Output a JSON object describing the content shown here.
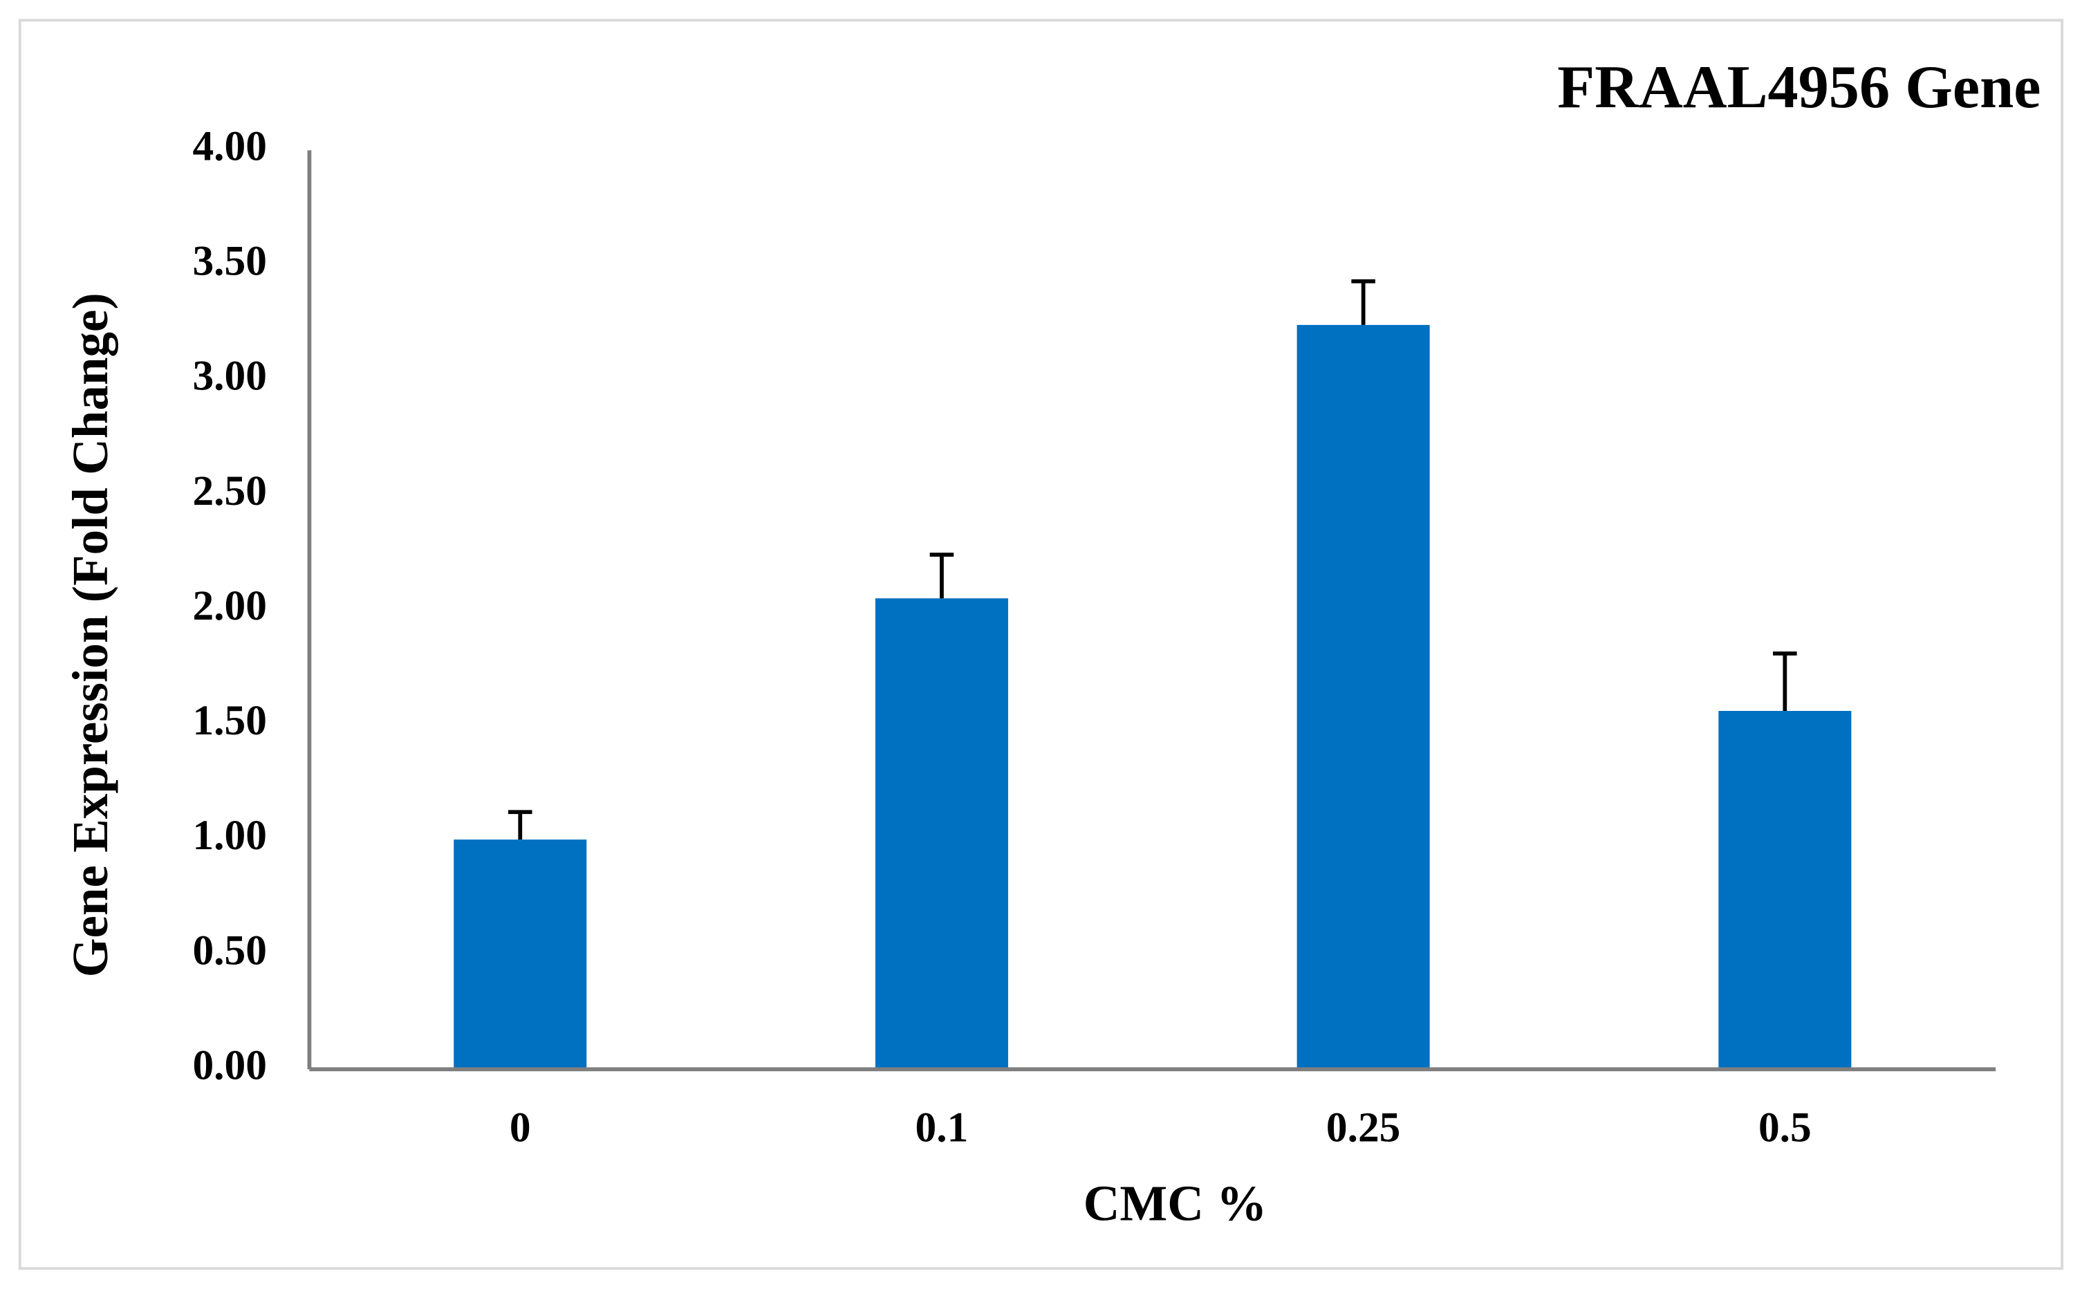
{
  "chart_data": {
    "type": "bar",
    "title": "FRAAL4956 Gene",
    "x_label": "CMC %",
    "y_label": "Gene Expression (Fold Change)",
    "categories": [
      "0",
      "0.1",
      "0.25",
      "0.5"
    ],
    "values": [
      1.0,
      2.05,
      3.24,
      1.56
    ],
    "errors": [
      0.12,
      0.19,
      0.19,
      0.25
    ],
    "color": "#0070c0",
    "ylim": [
      0,
      4
    ],
    "yticks": [
      {
        "value": 0,
        "label": "0.00"
      },
      {
        "value": 0.5,
        "label": "0.50"
      },
      {
        "value": 1,
        "label": "1.00"
      },
      {
        "value": 1.5,
        "label": "1.50"
      },
      {
        "value": 2,
        "label": "2.00"
      },
      {
        "value": 2.5,
        "label": "2.50"
      },
      {
        "value": 3,
        "label": "3.00"
      },
      {
        "value": 3.5,
        "label": "3.50"
      },
      {
        "value": 4,
        "label": "4.00"
      }
    ],
    "grid": false
  }
}
